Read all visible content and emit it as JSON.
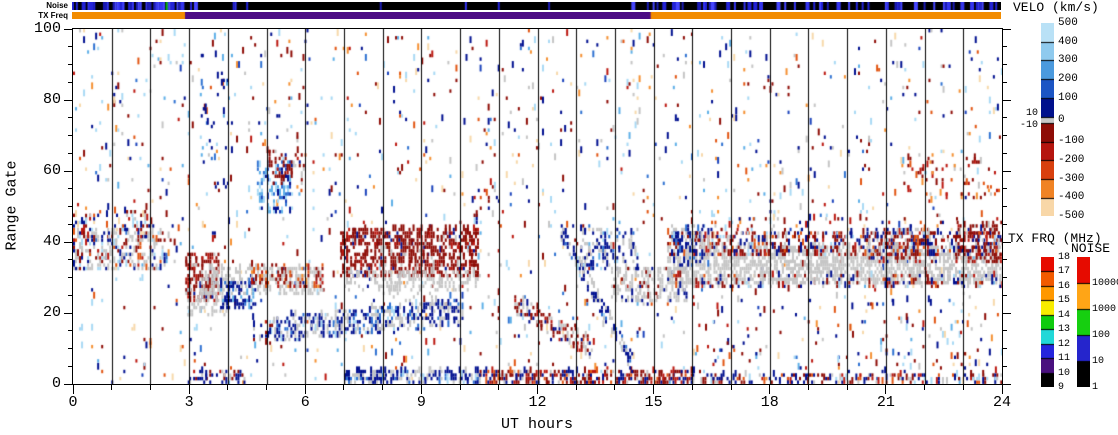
{
  "strips": {
    "noise_label": "Noise",
    "txfreq_label": "TX Freq",
    "noise_bg": "#000000",
    "noise_mark_colors": [
      "#2323d8",
      "#3434ef",
      "#1b1bb6",
      "#4646ff"
    ],
    "noise_green_mark": {
      "t": 2.42,
      "color": "#00b400"
    },
    "noise_zones": [
      [
        0,
        2.95,
        0.5
      ],
      [
        2.95,
        4.6,
        0.1
      ],
      [
        4.6,
        10.4,
        0.02
      ],
      [
        10.4,
        11.2,
        0.12
      ],
      [
        11.2,
        14.95,
        0.03
      ],
      [
        14.95,
        24,
        0.33
      ]
    ],
    "txfreq_segments": [
      [
        0,
        2.92,
        "#f28c00"
      ],
      [
        2.92,
        14.95,
        "#4c0c84"
      ],
      [
        14.95,
        24,
        "#f28c00"
      ]
    ]
  },
  "colorbars": {
    "velo": {
      "title": "VELO (km/s)",
      "labels": [
        "500",
        "400",
        "300",
        "200",
        "100",
        "0",
        "-100",
        "-200",
        "-300",
        "-400",
        "-500"
      ],
      "side_labels": [
        "10",
        "-10"
      ],
      "segment_colors": [
        "#b9e1f6",
        "#8fcaee",
        "#4b9ade",
        "#1c55c4",
        "#00108c",
        "#c8c8c8",
        "#8e0c06",
        "#b5150e",
        "#d8400e",
        "#f08324",
        "#f8d7a8"
      ]
    },
    "txfrq": {
      "title": "TX FRQ (MHz)",
      "labels": [
        "18",
        "17",
        "16",
        "15",
        "14",
        "13",
        "12",
        "11",
        "10",
        "9"
      ],
      "segment_colors": [
        "#e60b00",
        "#f25a00",
        "#ff9800",
        "#f8ec00",
        "#0ecb0e",
        "#21d8d8",
        "#2525dd",
        "#49107e",
        "#000000"
      ]
    },
    "noise": {
      "title": "NOISE",
      "labels": [
        "10000",
        "1000",
        "100",
        "10",
        "1"
      ],
      "segment_colors": [
        "#e60b00",
        "#ffa516",
        "#16cf10",
        "#2525cc",
        "#000000"
      ]
    }
  },
  "chart_data": {
    "type": "heatmap",
    "xlabel": "UT hours",
    "ylabel": "Range Gate",
    "x_ticks": [
      "0",
      "3",
      "6",
      "9",
      "12",
      "15",
      "18",
      "21",
      "24"
    ],
    "x_tick_values": [
      0,
      3,
      6,
      9,
      12,
      15,
      18,
      21,
      24
    ],
    "x_minor_step": 1,
    "x_range": [
      0,
      24
    ],
    "y_ticks": [
      "0",
      "20",
      "40",
      "60",
      "80",
      "100"
    ],
    "y_tick_values": [
      0,
      20,
      40,
      60,
      80,
      100
    ],
    "y_minor_step": 5,
    "y_range": [
      0,
      100
    ],
    "hour_gridlines": true,
    "seed": 1337,
    "dt": 0.052,
    "base_density": 0.03,
    "tall_frac": 0.3,
    "colors": {
      "lb": "#a9daf5",
      "sky": "#5fb0e8",
      "mb": "#2f72d2",
      "bl": "#1b43bc",
      "nv": "#001090",
      "dr": "#8e0c06",
      "rd": "#bc1810",
      "ored": "#e25512",
      "og": "#f59133",
      "cr": "#f7d9ab",
      "gy": "#c6c6c6"
    },
    "palettes": {
      "base": {
        "lb": 0.14,
        "sky": 0.06,
        "mb": 0.05,
        "bl": 0.04,
        "nv": 0.16,
        "dr": 0.16,
        "rd": 0.05,
        "ored": 0.06,
        "og": 0.07,
        "cr": 0.09,
        "gy": 0.12
      },
      "gs": {
        "gy": 1
      },
      "gs2": {
        "gy": 0.8,
        "nv": 0.1,
        "dr": 0.1
      },
      "gsmix": {
        "gy": 0.5,
        "dr": 0.18,
        "nv": 0.14,
        "rd": 0.05,
        "ored": 0.05,
        "lb": 0.08
      },
      "navy": {
        "nv": 0.78,
        "mb": 0.12,
        "sky": 0.1
      },
      "navygs": {
        "nv": 0.5,
        "gy": 0.34,
        "mb": 0.1,
        "lb": 0.06
      },
      "blues": {
        "lb": 0.26,
        "sky": 0.3,
        "mb": 0.22,
        "bl": 0.1,
        "nv": 0.12
      },
      "darkred": {
        "dr": 0.78,
        "rd": 0.1,
        "nv": 0.06,
        "gy": 0.06
      },
      "darkred2": {
        "dr": 0.66,
        "rd": 0.16,
        "gy": 0.1,
        "nv": 0.08
      },
      "redmix": {
        "dr": 0.45,
        "rd": 0.2,
        "ored": 0.15,
        "og": 0.12,
        "gy": 0.08
      },
      "redgs": {
        "dr": 0.4,
        "gy": 0.33,
        "rd": 0.12,
        "nv": 0.15
      },
      "mixed": {
        "nv": 0.28,
        "dr": 0.28,
        "rd": 0.08,
        "lb": 0.1,
        "gy": 0.12,
        "ored": 0.07,
        "cr": 0.07
      },
      "mixed2": {
        "dr": 0.32,
        "nv": 0.3,
        "rd": 0.1,
        "ored": 0.08,
        "lb": 0.06,
        "gy": 0.14
      },
      "navyred": {
        "nv": 0.5,
        "dr": 0.28,
        "rd": 0.1,
        "gy": 0.12
      },
      "redbot": {
        "dr": 0.42,
        "rd": 0.16,
        "nv": 0.22,
        "gy": 0.1,
        "ored": 0.1
      }
    },
    "boxes": [
      [
        0,
        2.35,
        32,
        42,
        0.4,
        "gsmix"
      ],
      [
        0,
        0.6,
        40,
        47,
        0.25,
        "mixed"
      ],
      [
        0.8,
        2.05,
        41,
        48,
        0.16,
        "mixed"
      ],
      [
        2.9,
        3.75,
        23,
        36,
        0.5,
        "darkred2"
      ],
      [
        2.95,
        4.0,
        19,
        26,
        0.25,
        "gs"
      ],
      [
        3.3,
        6.45,
        25,
        32,
        0.42,
        "gs"
      ],
      [
        3.8,
        4.7,
        21,
        28,
        0.5,
        "navy"
      ],
      [
        4.6,
        6.45,
        27,
        33,
        0.28,
        "redmix"
      ],
      [
        4.75,
        5.65,
        48,
        62,
        0.33,
        "blues"
      ],
      [
        5.0,
        5.95,
        56,
        65,
        0.22,
        "darkred2"
      ],
      [
        3.3,
        4.15,
        55,
        95,
        0.06,
        "navy"
      ],
      [
        6.9,
        10.45,
        30,
        43,
        0.55,
        "darkred"
      ],
      [
        7.0,
        10.5,
        26,
        31,
        0.3,
        "gs"
      ],
      [
        4.65,
        5.2,
        11,
        17,
        0.28,
        "mixed"
      ],
      [
        3.0,
        4.45,
        0,
        3,
        0.33,
        "navyred"
      ],
      [
        7.0,
        10.6,
        0,
        3,
        0.5,
        "navygs"
      ],
      [
        10.6,
        16.0,
        0,
        3,
        0.52,
        "redbot"
      ],
      [
        16.0,
        24,
        0,
        2.5,
        0.3,
        "mixed"
      ],
      [
        13.1,
        14.6,
        32,
        43,
        0.3,
        "navygs"
      ],
      [
        13.9,
        15.85,
        23,
        32,
        0.42,
        "gs2"
      ],
      [
        15.35,
        24,
        28,
        38,
        0.55,
        "gs"
      ],
      [
        15.35,
        24,
        36,
        42,
        0.33,
        "mixed2"
      ],
      [
        15.35,
        24,
        26.5,
        30,
        0.25,
        "mixed2"
      ],
      [
        15.45,
        16.4,
        33,
        44,
        0.33,
        "navygs"
      ],
      [
        20.5,
        22.3,
        34,
        43,
        0.3,
        "mixed2"
      ],
      [
        22.8,
        24,
        34,
        44,
        0.42,
        "darkred2"
      ],
      [
        21.4,
        23.9,
        52,
        64,
        0.09,
        "redmix"
      ],
      [
        16,
        24,
        40,
        46,
        0.1,
        "mixed"
      ],
      [
        10.3,
        11.1,
        44,
        56,
        0.09,
        "mixed"
      ],
      [
        8.0,
        9.6,
        23,
        30,
        0.13,
        "gs"
      ],
      [
        16,
        24,
        3,
        25,
        0.022,
        "mixed"
      ]
    ],
    "bands": [
      [
        5.2,
        9.95,
        15,
        19.5,
        3.2,
        0.5,
        "navygs"
      ],
      [
        11.4,
        13.45,
        22,
        9,
        2.4,
        0.42,
        "redgs"
      ],
      [
        12.6,
        14.45,
        42,
        5,
        2.2,
        0.48,
        "navygs"
      ]
    ]
  }
}
